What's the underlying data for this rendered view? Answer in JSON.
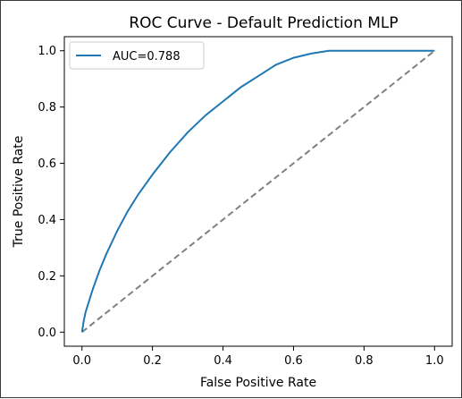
{
  "chart_data": {
    "type": "line",
    "title": "ROC Curve - Default Prediction MLP",
    "xlabel": "False Positive Rate",
    "ylabel": "True Positive Rate",
    "xlim": [
      -0.05,
      1.05
    ],
    "ylim": [
      -0.05,
      1.05
    ],
    "xticks": [
      "0.0",
      "0.2",
      "0.4",
      "0.6",
      "0.8",
      "1.0"
    ],
    "yticks": [
      "0.0",
      "0.2",
      "0.4",
      "0.6",
      "0.8",
      "1.0"
    ],
    "grid": false,
    "legend_position": "upper-left",
    "series": [
      {
        "name": "AUC=0.788",
        "color": "#1f77b4",
        "style": "solid",
        "x": [
          0.0,
          0.005,
          0.01,
          0.02,
          0.03,
          0.05,
          0.07,
          0.1,
          0.13,
          0.16,
          0.2,
          0.25,
          0.3,
          0.35,
          0.4,
          0.45,
          0.5,
          0.55,
          0.6,
          0.65,
          0.7,
          0.8,
          0.9,
          1.0
        ],
        "y": [
          0.0,
          0.04,
          0.07,
          0.11,
          0.15,
          0.22,
          0.28,
          0.36,
          0.43,
          0.49,
          0.56,
          0.64,
          0.71,
          0.77,
          0.82,
          0.87,
          0.91,
          0.95,
          0.975,
          0.99,
          1.0,
          1.0,
          1.0,
          1.0
        ]
      },
      {
        "color": "#808080",
        "style": "dashed",
        "x": [
          0.0,
          1.0
        ],
        "y": [
          0.0,
          1.0
        ]
      }
    ]
  }
}
